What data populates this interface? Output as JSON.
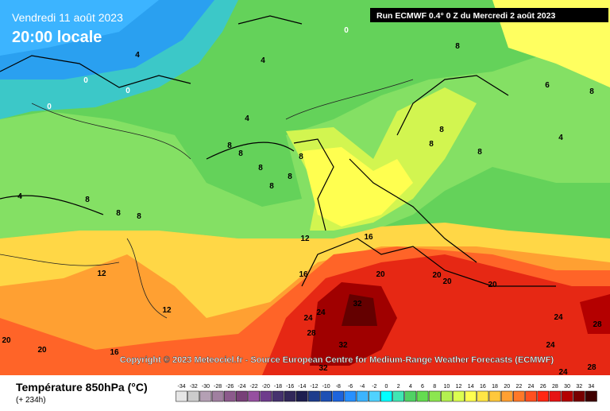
{
  "header": {
    "date": "Vendredi 11 août 2023",
    "time": "20:00 locale",
    "run": "Run ECMWF 0.4° 0 Z du Mercredi 2 août 2023"
  },
  "copyright": "Copyright © 2023 Meteociel.fr - Source European Centre for Medium-Range Weather Forecasts (ECMWF)",
  "legend": {
    "title": "Température 850hPa (°C)",
    "lead": "(+ 234h)",
    "ticks": [
      -34,
      -32,
      -30,
      -28,
      -26,
      -24,
      -22,
      -20,
      -18,
      -16,
      -14,
      -12,
      -10,
      -8,
      -6,
      -4,
      -2,
      0,
      2,
      4,
      6,
      8,
      10,
      12,
      14,
      16,
      18,
      20,
      22,
      24,
      26,
      28,
      30,
      32,
      34
    ],
    "colors": [
      "#e6e6e6",
      "#cccccc",
      "#b4a0b4",
      "#a080a0",
      "#8c5a8c",
      "#784078",
      "#9650a0",
      "#6e3c8c",
      "#46326e",
      "#32285a",
      "#1e1e50",
      "#1e3c8c",
      "#1e50b4",
      "#1e64dc",
      "#2890ff",
      "#3cb4ff",
      "#50d2ff",
      "#00ffff",
      "#40e6b4",
      "#50d264",
      "#64dc50",
      "#8ce650",
      "#b4f050",
      "#dcff50",
      "#ffff50",
      "#ffe646",
      "#ffc83c",
      "#ffa032",
      "#ff7828",
      "#ff5020",
      "#ff2814",
      "#e61414",
      "#b40000",
      "#780000",
      "#400000"
    ]
  },
  "contour_labels": [
    0,
    4,
    4,
    0,
    0,
    0,
    8,
    4,
    8,
    8,
    8,
    8,
    8,
    8,
    8,
    8,
    8,
    4,
    8,
    8,
    8,
    4,
    8,
    6,
    12,
    16,
    12,
    16,
    20,
    20,
    20,
    20,
    12,
    24,
    32,
    24,
    28,
    24,
    28,
    32,
    24,
    20,
    20,
    16,
    32,
    24,
    28
  ]
}
